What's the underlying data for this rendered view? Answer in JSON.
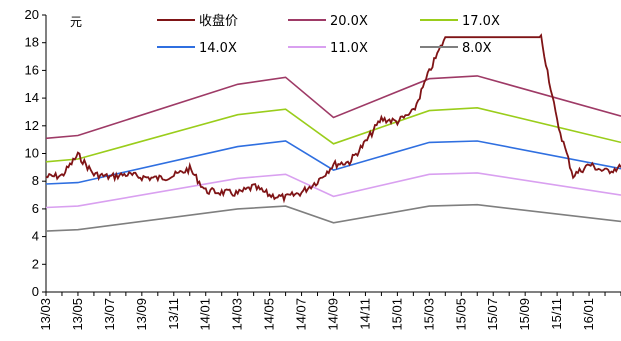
{
  "chart_data": {
    "type": "line",
    "unit": "元",
    "ylim": [
      0,
      20
    ],
    "yticks": [
      0,
      2,
      4,
      6,
      8,
      10,
      12,
      14,
      16,
      18,
      20
    ],
    "xlim": [
      "2013-03",
      "2016-03"
    ],
    "xticks": [
      "13/03",
      "13/05",
      "13/07",
      "13/09",
      "13/11",
      "14/01",
      "14/03",
      "14/05",
      "14/07",
      "14/09",
      "14/11",
      "15/01",
      "15/03",
      "15/05",
      "15/07",
      "15/09",
      "15/11",
      "16/01"
    ],
    "grid": false,
    "legend_position": "top",
    "series": [
      {
        "name": "收盘价",
        "color": "#7f1416",
        "points": [
          [
            "2013-03",
            8.3
          ],
          [
            "2013-04",
            8.4
          ],
          [
            "2013-05",
            9.9
          ],
          [
            "2013-06",
            8.5
          ],
          [
            "2013-07",
            8.3
          ],
          [
            "2013-08",
            8.5
          ],
          [
            "2013-09",
            8.3
          ],
          [
            "2013-10",
            8.2
          ],
          [
            "2013-11",
            8.4
          ],
          [
            "2013-12",
            8.9
          ],
          [
            "2014-01",
            7.3
          ],
          [
            "2014-02",
            7.2
          ],
          [
            "2014-03",
            7.1
          ],
          [
            "2014-04",
            7.6
          ],
          [
            "2014-05",
            7.0
          ],
          [
            "2014-06",
            6.8
          ],
          [
            "2014-07",
            7.2
          ],
          [
            "2014-08",
            8.0
          ],
          [
            "2014-09",
            9.2
          ],
          [
            "2014-10",
            9.4
          ],
          [
            "2014-11",
            10.8
          ],
          [
            "2014-12",
            12.5
          ],
          [
            "2015-01",
            12.3
          ],
          [
            "2015-02",
            13.0
          ],
          [
            "2015-03",
            15.9
          ],
          [
            "2015-04",
            18.4
          ],
          [
            "2015-05",
            18.4
          ],
          [
            "2015-06",
            18.4
          ],
          [
            "2015-07",
            18.4
          ],
          [
            "2015-08",
            18.4
          ],
          [
            "2015-09",
            18.4
          ],
          [
            "2015-10",
            18.4
          ],
          [
            "2015-11",
            12.3
          ],
          [
            "2015-12",
            8.4
          ],
          [
            "2016-01",
            9.2
          ],
          [
            "2016-02",
            8.7
          ],
          [
            "2016-03",
            9.0
          ]
        ]
      },
      {
        "name": "20.0X",
        "color": "#9e3a66",
        "points": [
          [
            "2013-03",
            11.1
          ],
          [
            "2013-05",
            11.3
          ],
          [
            "2014-03",
            15.0
          ],
          [
            "2014-06",
            15.5
          ],
          [
            "2014-09",
            12.6
          ],
          [
            "2015-03",
            15.4
          ],
          [
            "2015-06",
            15.6
          ],
          [
            "2016-03",
            12.7
          ]
        ]
      },
      {
        "name": "17.0X",
        "color": "#9acd1b",
        "points": [
          [
            "2013-03",
            9.4
          ],
          [
            "2013-05",
            9.6
          ],
          [
            "2014-03",
            12.8
          ],
          [
            "2014-06",
            13.2
          ],
          [
            "2014-09",
            10.7
          ],
          [
            "2015-03",
            13.1
          ],
          [
            "2015-06",
            13.3
          ],
          [
            "2016-03",
            10.8
          ]
        ]
      },
      {
        "name": "14.0X",
        "color": "#2f6fe0",
        "points": [
          [
            "2013-03",
            7.8
          ],
          [
            "2013-05",
            7.9
          ],
          [
            "2014-03",
            10.5
          ],
          [
            "2014-06",
            10.9
          ],
          [
            "2014-09",
            8.8
          ],
          [
            "2015-03",
            10.8
          ],
          [
            "2015-06",
            10.9
          ],
          [
            "2016-03",
            8.9
          ]
        ]
      },
      {
        "name": "11.0X",
        "color": "#d9a0f0",
        "points": [
          [
            "2013-03",
            6.1
          ],
          [
            "2013-05",
            6.2
          ],
          [
            "2014-03",
            8.2
          ],
          [
            "2014-06",
            8.5
          ],
          [
            "2014-09",
            6.9
          ],
          [
            "2015-03",
            8.5
          ],
          [
            "2015-06",
            8.6
          ],
          [
            "2016-03",
            7.0
          ]
        ]
      },
      {
        "name": "8.0X",
        "color": "#7f7f7f",
        "points": [
          [
            "2013-03",
            4.4
          ],
          [
            "2013-05",
            4.5
          ],
          [
            "2014-03",
            6.0
          ],
          [
            "2014-06",
            6.2
          ],
          [
            "2014-09",
            5.0
          ],
          [
            "2015-03",
            6.2
          ],
          [
            "2015-06",
            6.3
          ],
          [
            "2016-03",
            5.1
          ]
        ]
      }
    ]
  }
}
